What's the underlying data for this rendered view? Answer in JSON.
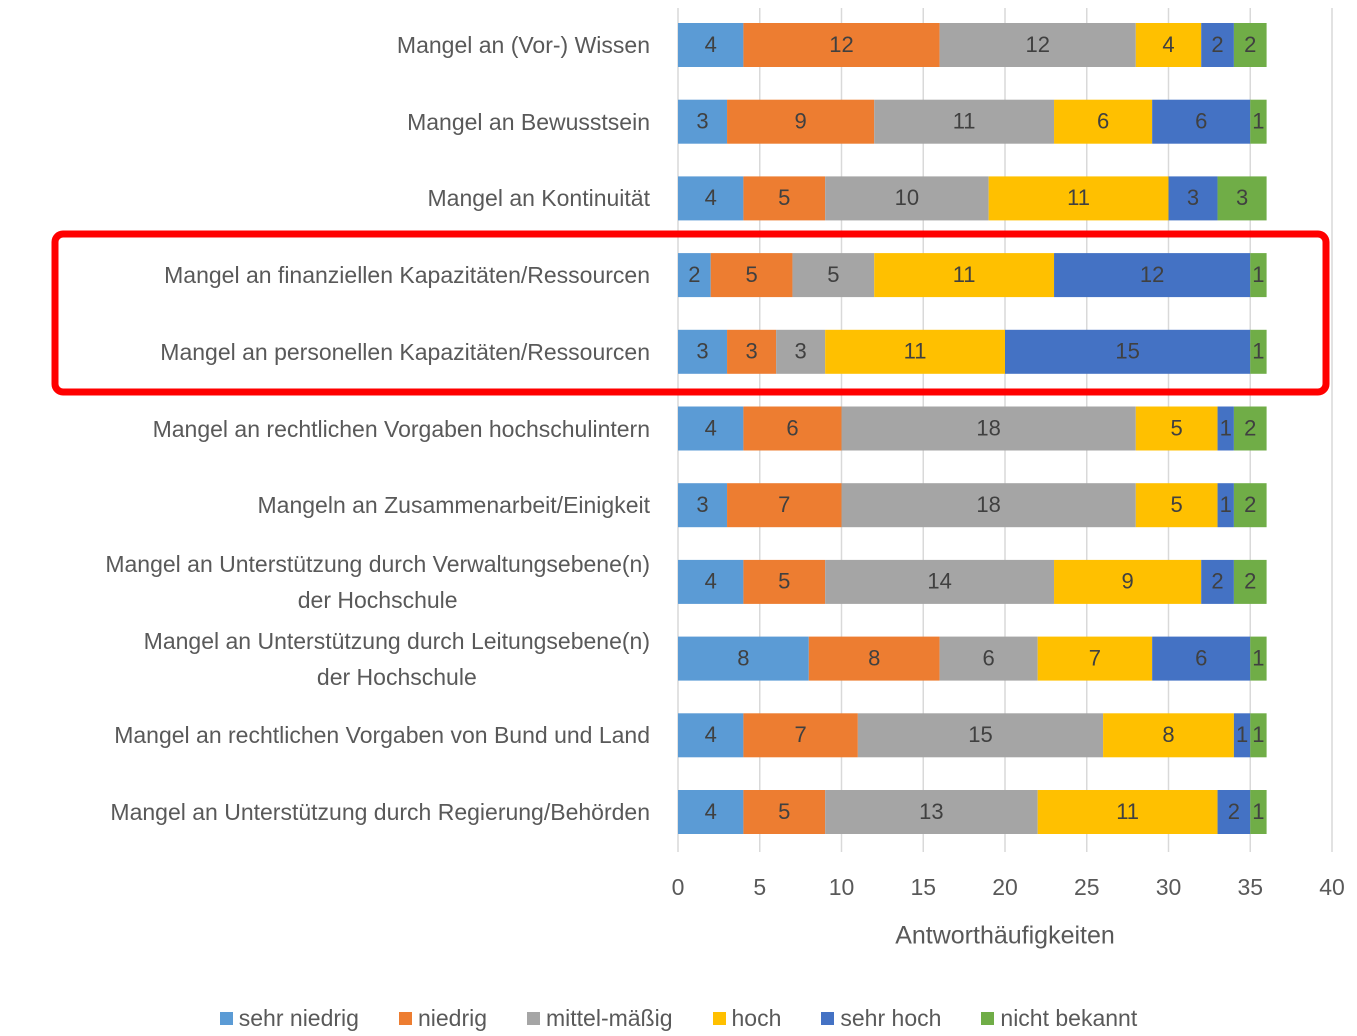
{
  "chart_data": {
    "type": "stacked-bar-horizontal",
    "x_label": "Antworthäufigkeiten",
    "categories": [
      "Mangel an (Vor-) Wissen",
      "Mangel an Bewusstsein",
      "Mangel an Kontinuität",
      "Mangel an finanziellen Kapazitäten/Ressourcen",
      "Mangel an personellen Kapazitäten/Ressourcen",
      "Mangel an rechtlichen Vorgaben hochschulintern",
      "Mangeln an Zusammenarbeit/Einigkeit",
      "Mangel an Unterstützung durch Verwaltungsebene(n)\nder Hochschule",
      "Mangel an Unterstützung durch Leitungsebene(n)\nder Hochschule",
      "Mangel an rechtlichen Vorgaben von Bund und Land",
      "Mangel an Unterstützung durch Regierung/Behörden"
    ],
    "series": [
      {
        "name": "sehr niedrig",
        "color": "#5b9bd5",
        "values": [
          4,
          3,
          4,
          2,
          3,
          4,
          3,
          4,
          8,
          4,
          4
        ]
      },
      {
        "name": "niedrig",
        "color": "#ed7d31",
        "values": [
          12,
          9,
          5,
          5,
          3,
          6,
          7,
          5,
          8,
          7,
          5
        ]
      },
      {
        "name": "mittel-mäßig",
        "color": "#a5a5a5",
        "values": [
          12,
          11,
          10,
          5,
          3,
          18,
          18,
          14,
          6,
          15,
          13
        ]
      },
      {
        "name": "hoch",
        "color": "#ffc000",
        "values": [
          4,
          6,
          11,
          11,
          11,
          5,
          5,
          9,
          7,
          8,
          11
        ]
      },
      {
        "name": "sehr hoch",
        "color": "#4472c4",
        "values": [
          2,
          6,
          3,
          12,
          15,
          1,
          1,
          2,
          6,
          1,
          2
        ]
      },
      {
        "name": "nicht bekannt",
        "color": "#70ad47",
        "values": [
          2,
          1,
          3,
          1,
          1,
          2,
          2,
          2,
          1,
          1,
          1
        ]
      }
    ],
    "xlim": [
      0,
      40
    ],
    "xticks": [
      0,
      5,
      10,
      15,
      20,
      25,
      30,
      35,
      40
    ],
    "grid": true,
    "legend": "bottom"
  }
}
